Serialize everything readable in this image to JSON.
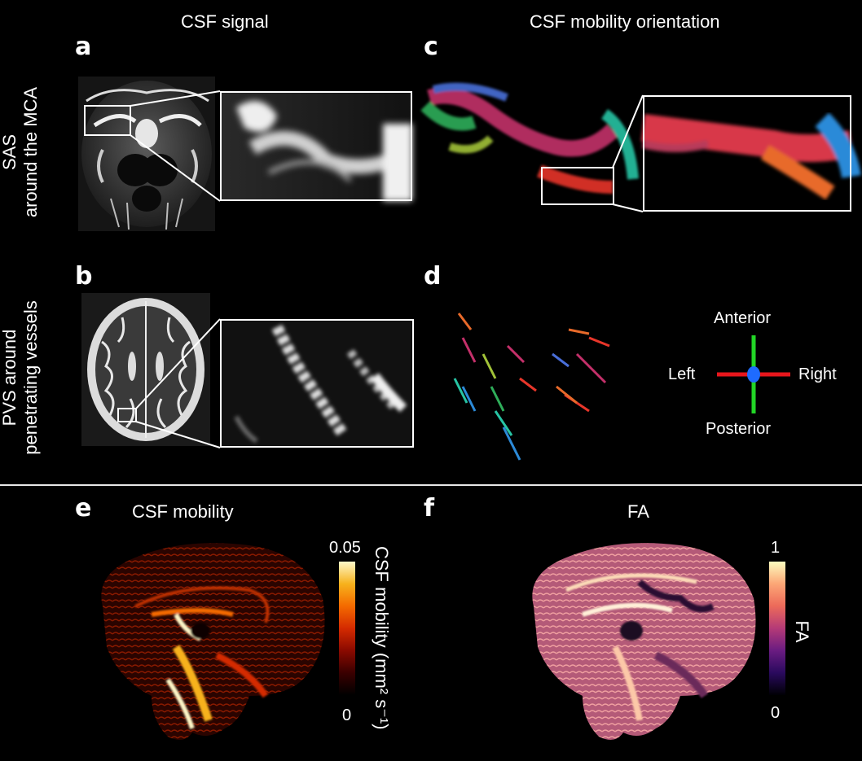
{
  "column_headers": {
    "left": "CSF signal",
    "right": "CSF mobility orientation"
  },
  "row_labels": {
    "top": [
      "SAS",
      "around the MCA"
    ],
    "middle": [
      "PVS around",
      "penetrating vessels"
    ]
  },
  "panel_labels": {
    "a": "a",
    "b": "b",
    "c": "c",
    "d": "d",
    "e": "e",
    "f": "f"
  },
  "orientation_legend": {
    "anterior": "Anterior",
    "posterior": "Posterior",
    "left": "Left",
    "right": "Right",
    "colors": {
      "lr": "#e8161c",
      "ap": "#22d626",
      "center": "#1e6bff"
    }
  },
  "panel_e": {
    "title": "CSF mobility",
    "colorbar_max": "0.05",
    "colorbar_min": "0",
    "colorbar_label": "CSF mobility (mm² s⁻¹)",
    "colormap": [
      "#000000",
      "#3a0000",
      "#8a0a00",
      "#d42a00",
      "#f46a00",
      "#f7b21c",
      "#fdf7c8"
    ]
  },
  "panel_f": {
    "title": "FA",
    "colorbar_max": "1",
    "colorbar_min": "0",
    "colorbar_label": "FA",
    "colormap": [
      "#000004",
      "#2a0a5e",
      "#6a1c81",
      "#b43a77",
      "#ec6a5a",
      "#fca676",
      "#fcfdbf"
    ]
  }
}
